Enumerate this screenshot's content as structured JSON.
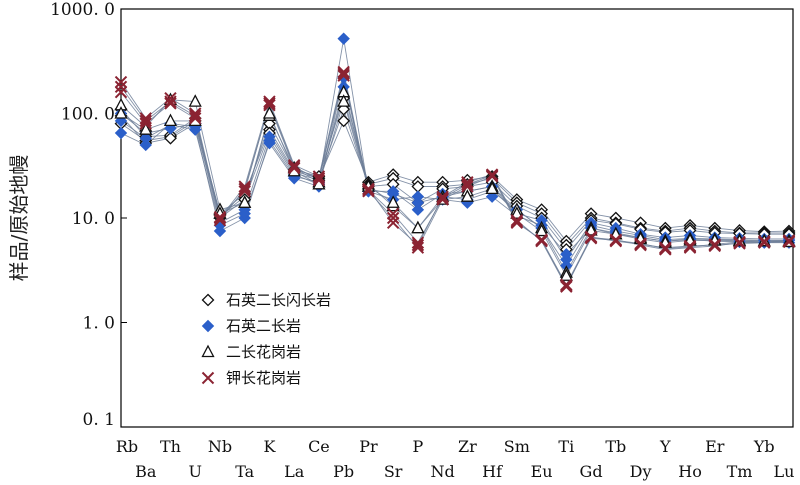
{
  "chart_data": {
    "type": "line",
    "title": "",
    "xlabel": "",
    "ylabel": "样品/原始地幔",
    "yscale": "log",
    "ylim": [
      0.1,
      1000
    ],
    "yticks": [
      {
        "value": 1000,
        "label": "1000. 0"
      },
      {
        "value": 100,
        "label": "100. 0"
      },
      {
        "value": 10,
        "label": "10. 0"
      },
      {
        "value": 1,
        "label": "1. 0"
      },
      {
        "value": 0.1,
        "label": "0. 1"
      }
    ],
    "categories": [
      "Rb",
      "Ba",
      "Th",
      "U",
      "Nb",
      "Ta",
      "K",
      "La",
      "Ce",
      "Pb",
      "Pr",
      "Sr",
      "P",
      "Nd",
      "Zr",
      "Hf",
      "Sm",
      "Eu",
      "Ti",
      "Gd",
      "Tb",
      "Dy",
      "Y",
      "Ho",
      "Er",
      "Tm",
      "Yb",
      "Lu"
    ],
    "x_label_rows": {
      "upper": [
        "Rb",
        "Th",
        "Nb",
        "K",
        "Ce",
        "Pr",
        "P",
        "Zr",
        "Sm",
        "Ti",
        "Tb",
        "Y",
        "Er",
        "Yb"
      ],
      "lower": [
        "Ba",
        "U",
        "Ta",
        "La",
        "Pb",
        "Sr",
        "Nd",
        "Hf",
        "Eu",
        "Gd",
        "Dy",
        "Ho",
        "Tm",
        "Lu"
      ]
    },
    "legend_position": "lower-left",
    "series": [
      {
        "name": "石英二长闪长岩",
        "marker": "diamond-open",
        "color": "#111111",
        "samples": [
          [
            80,
            55,
            60,
            85,
            11,
            17,
            70,
            28,
            24,
            85,
            22,
            26,
            22,
            22,
            23,
            25,
            15,
            12,
            6,
            11,
            10,
            9,
            8,
            8.5,
            8,
            7.6,
            7.4,
            7.5
          ],
          [
            110,
            60,
            62,
            90,
            10.5,
            16,
            80,
            29,
            25,
            140,
            21,
            24,
            20,
            20,
            21,
            24,
            14,
            11,
            5.5,
            10,
            9,
            8,
            7.5,
            8,
            7.5,
            7.2,
            7.2,
            7.2
          ],
          [
            95,
            52,
            58,
            80,
            10,
            15,
            65,
            27,
            23,
            110,
            20,
            21,
            14,
            19,
            20,
            22,
            13,
            10,
            5,
            9.5,
            8.8,
            7.8,
            7.3,
            7.6,
            7.2,
            7.1,
            7,
            7
          ]
        ]
      },
      {
        "name": "石英二长岩",
        "marker": "diamond-filled",
        "color": "#2b5fc9",
        "samples": [
          [
            65,
            50,
            80,
            75,
            7.5,
            10,
            55,
            25,
            22,
            520,
            18,
            18,
            12,
            17,
            18,
            20,
            11,
            9.5,
            4,
            9,
            8,
            7,
            6.5,
            6.8,
            6.5,
            6.4,
            6.3,
            6.3
          ],
          [
            100,
            65,
            72,
            80,
            9,
            12,
            60,
            26,
            21,
            180,
            19,
            17,
            14,
            16,
            15,
            18,
            12,
            8,
            3.5,
            8.5,
            7.5,
            6.8,
            6.2,
            6.4,
            6.3,
            6.2,
            6.1,
            6.1
          ],
          [
            85,
            58,
            78,
            70,
            8.5,
            11,
            52,
            24,
            20,
            220,
            18,
            15,
            16,
            15,
            14,
            16,
            10.5,
            8.5,
            4.5,
            8,
            7.2,
            6.5,
            6,
            6.2,
            6,
            5.9,
            5.8,
            5.8
          ]
        ]
      },
      {
        "name": "二长花岗岩",
        "marker": "triangle-open",
        "color": "#111111",
        "samples": [
          [
            120,
            75,
            135,
            130,
            12,
            14,
            95,
            30,
            22,
            160,
            21,
            13,
            8,
            16,
            18,
            20,
            12,
            8,
            3,
            8,
            7,
            6.5,
            6,
            6.3,
            6.2,
            6.1,
            6,
            6
          ],
          [
            100,
            70,
            85,
            85,
            11,
            14,
            100,
            28,
            21,
            130,
            20,
            14,
            8,
            15,
            16,
            19,
            11,
            7.5,
            2.8,
            7.6,
            7,
            6.3,
            5.8,
            6.1,
            6.1,
            6,
            6,
            5.9
          ]
        ]
      },
      {
        "name": "钾长花岗岩",
        "marker": "cross",
        "color": "#8b2332",
        "samples": [
          [
            200,
            90,
            140,
            100,
            10,
            20,
            130,
            32,
            25,
            250,
            19,
            9,
            5.5,
            16,
            22,
            26,
            9.5,
            6,
            2.2,
            6.5,
            6.2,
            5.5,
            5,
            5.2,
            5.4,
            5.8,
            5.9,
            6
          ],
          [
            180,
            85,
            130,
            95,
            9.5,
            19,
            120,
            30,
            24,
            230,
            18,
            10,
            5.2,
            15,
            20,
            25,
            9,
            6.2,
            2.3,
            6.6,
            6,
            5.6,
            5.2,
            5.4,
            5.5,
            5.7,
            5.8,
            5.9
          ],
          [
            160,
            80,
            125,
            90,
            10.2,
            18,
            125,
            31,
            23,
            240,
            18.5,
            11,
            5.8,
            15.5,
            21,
            25.5,
            9.2,
            6.1,
            2.25,
            6.4,
            6.1,
            5.7,
            5.1,
            5.3,
            5.6,
            5.9,
            6,
            6.1
          ]
        ]
      }
    ]
  }
}
